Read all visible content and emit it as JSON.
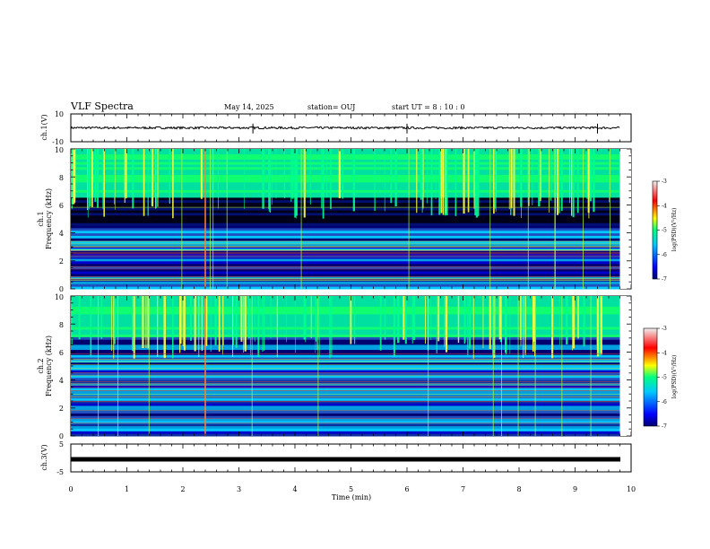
{
  "header": {
    "title": "VLF Spectra",
    "date": "May 14, 2025",
    "station": "station= OUJ",
    "start_ut": "start  UT =   8  : 10 : 0"
  },
  "colorbar": {
    "ticks": [
      "-3",
      "-4",
      "-5",
      "-6",
      "-7"
    ],
    "label": "log(PSD)(V²/Hz)",
    "colors": [
      "#000070",
      "#0000ff",
      "#00c8ff",
      "#00ff7f",
      "#ffff00",
      "#ff0000",
      "#e0e0e0"
    ]
  },
  "chart_data": [
    {
      "type": "line",
      "panel": "ch.1 waveform",
      "ylabel": "ch.1(V)",
      "ylim": [
        -10,
        10
      ],
      "ytick_labels": [
        "10",
        "-10"
      ],
      "approx_level": 0,
      "spikes_min": [
        3.25,
        6.0,
        9.4
      ]
    },
    {
      "type": "heatmap",
      "panel": "ch.1 spectrogram",
      "ylabel": "ch.1\nFrequency (kHz)",
      "ylim": [
        0,
        10
      ],
      "ytick_labels": [
        "0",
        "2",
        "4",
        "6",
        "8",
        "10"
      ],
      "xlim_min": [
        0,
        9.8
      ],
      "zlim": [
        -7,
        -3
      ],
      "quiet_band_khz": [
        4.5,
        6.5
      ],
      "emission_band_khz": [
        6.5,
        10
      ]
    },
    {
      "type": "heatmap",
      "panel": "ch.2 spectrogram",
      "ylabel": "ch.2\nFrequency (kHz)",
      "ylim": [
        0,
        10
      ],
      "ytick_labels": [
        "0",
        "2",
        "4",
        "6",
        "8",
        "10"
      ],
      "xlim_min": [
        0,
        9.8
      ],
      "zlim": [
        -7,
        -3
      ],
      "emission_band_khz": [
        7,
        10
      ]
    },
    {
      "type": "line",
      "panel": "ch.3 waveform",
      "ylabel": "ch.3(V)",
      "ylim": [
        -5,
        5
      ],
      "ytick_labels": [
        "5",
        "-5"
      ],
      "approx_level": -1.2
    }
  ],
  "xaxis": {
    "label": "Time (min)",
    "range": [
      0,
      10
    ],
    "tick_labels": [
      "0",
      "1",
      "2",
      "3",
      "4",
      "5",
      "6",
      "7",
      "8",
      "9",
      "10"
    ]
  }
}
